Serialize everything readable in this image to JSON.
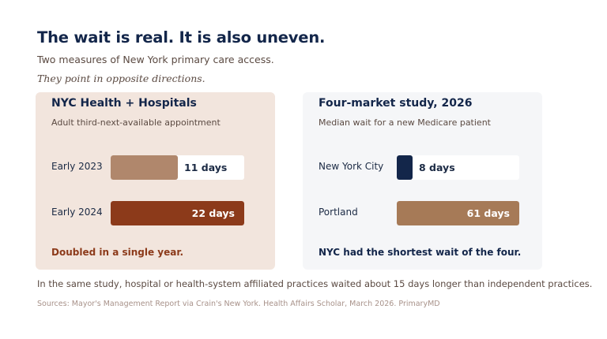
{
  "title": "The wait is real. It is also uneven.",
  "subtitle": "Two measures of New York primary care access.",
  "tagline": "They point in opposite directions.",
  "cards": [
    {
      "title": "NYC Health + Hospitals",
      "subtitle": "Adult third-next-available appointment",
      "scale_max": 22,
      "rows": [
        {
          "label": "Early 2023",
          "value": 11,
          "value_label": "11 days",
          "color": "#b0876c"
        },
        {
          "label": "Early 2024",
          "value": 22,
          "value_label": "22 days",
          "color": "#8c3a1a"
        }
      ],
      "note": "Doubled in a single year."
    },
    {
      "title": "Four-market study, 2026",
      "subtitle": "Median wait for a new Medicare patient",
      "scale_max": 61,
      "rows": [
        {
          "label": "New York City",
          "value": 8,
          "value_label": "8 days",
          "color": "#13264a"
        },
        {
          "label": "Portland",
          "value": 61,
          "value_label": "61 days",
          "color": "#a67a57"
        }
      ],
      "note": "NYC had the shortest wait of the four."
    }
  ],
  "footnote": "In the same study, hospital or health-system affiliated practices waited about 15 days longer than independent practices.",
  "sources": "Sources: Mayor's Management Report via Crain's New York.  Health Affairs Scholar, March 2026.   PrimaryMD"
}
